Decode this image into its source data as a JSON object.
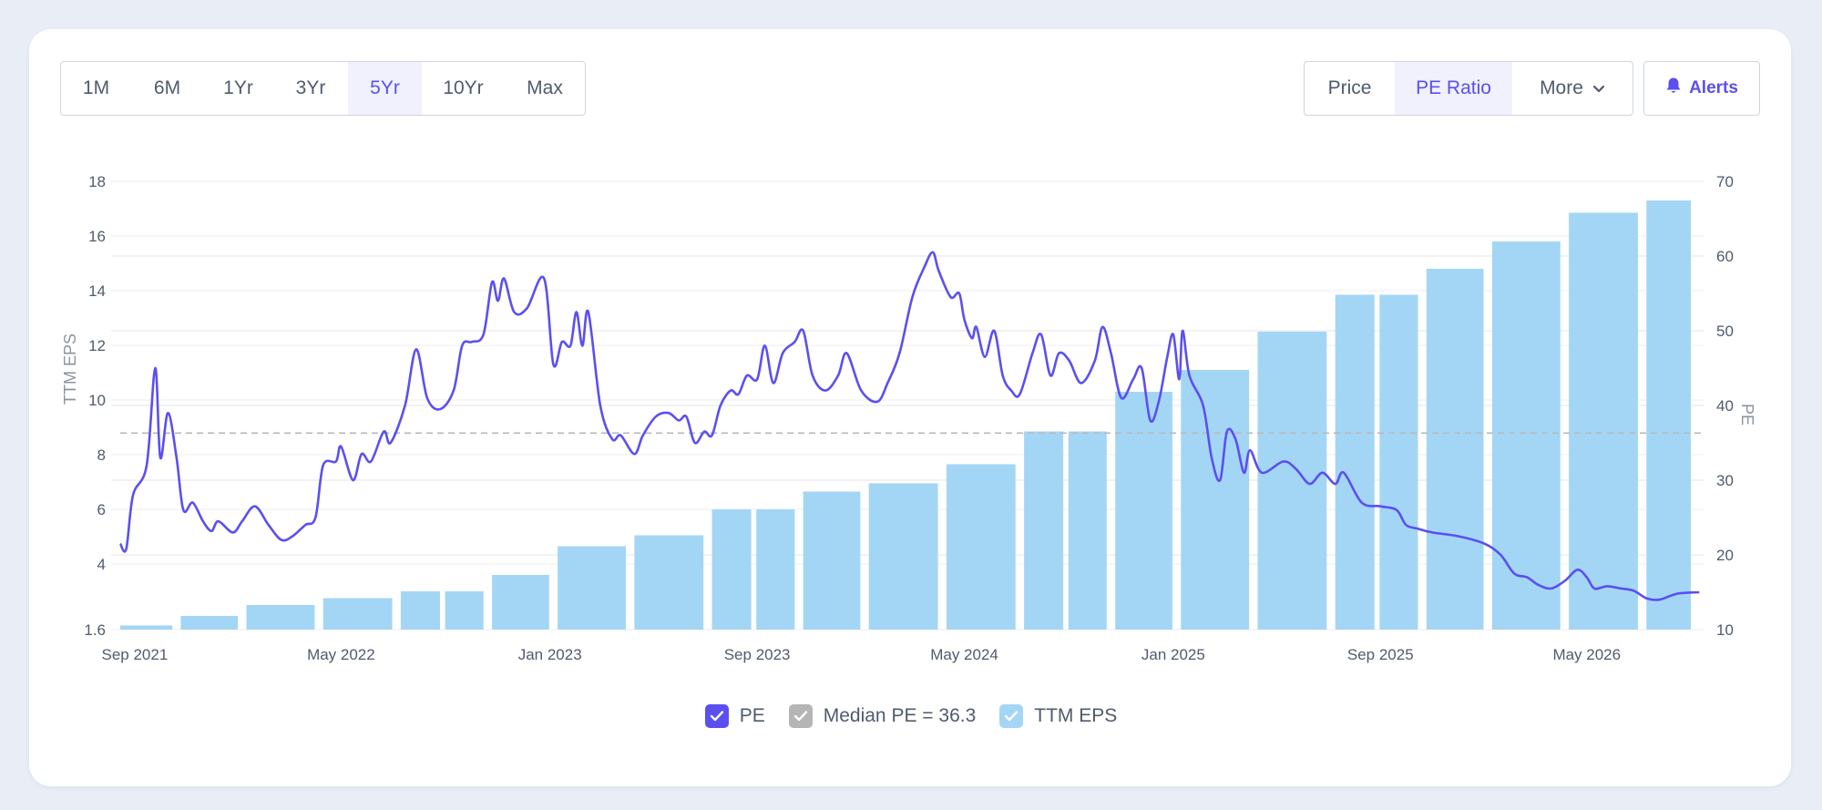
{
  "range_buttons": [
    "1M",
    "6M",
    "1Yr",
    "3Yr",
    "5Yr",
    "10Yr",
    "Max"
  ],
  "active_range": "5Yr",
  "view_buttons": [
    "Price",
    "PE Ratio",
    "More"
  ],
  "active_view": "PE Ratio",
  "alerts_label": "Alerts",
  "colors": {
    "pe_line": "#5b4ff0",
    "eps_bar": "#a3d6f5",
    "median_line": "#b8b8b8",
    "accent": "#5b4ff0"
  },
  "icons": {
    "alerts": "bell-icon",
    "more": "chevron-down-icon",
    "legend_check": "check-icon"
  },
  "legend": [
    {
      "label": "PE",
      "color": "#5b4ff0"
    },
    {
      "label": "Median PE = 36.3",
      "color": "#b5b5b5"
    },
    {
      "label": "TTM EPS",
      "color": "#a3d6f5"
    }
  ],
  "chart_data": {
    "type": "bar",
    "x_tick_labels": [
      "Sep 2021",
      "May 2022",
      "Jan 2023",
      "Sep 2023",
      "May 2024",
      "Jan 2025",
      "Sep 2025",
      "May 2026"
    ],
    "x_tick_dates": [
      "2021-09-01",
      "2022-05-01",
      "2023-01-01",
      "2023-09-01",
      "2024-05-01",
      "2025-01-01",
      "2025-09-01",
      "2026-05-01"
    ],
    "xlim": [
      "2021-08-15",
      "2026-09-15"
    ],
    "left_axis": {
      "label": "TTM EPS",
      "ticks": [
        1.6,
        4,
        6,
        8,
        10,
        12,
        14,
        16,
        18
      ],
      "range": [
        1.6,
        18
      ]
    },
    "right_axis": {
      "label": "PE",
      "ticks": [
        10,
        20,
        30,
        40,
        50,
        60,
        70
      ],
      "range": [
        10,
        70
      ]
    },
    "grid": true,
    "legend_position": "bottom",
    "median_pe": 36.3,
    "series": [
      {
        "name": "TTM EPS",
        "type": "bar",
        "axis": "left",
        "data": [
          {
            "start": "2021-08-15",
            "end": "2021-10-15",
            "value": 1.75
          },
          {
            "start": "2021-10-25",
            "end": "2021-12-31",
            "value": 2.1
          },
          {
            "start": "2022-01-10",
            "end": "2022-03-31",
            "value": 2.5
          },
          {
            "start": "2022-04-10",
            "end": "2022-06-30",
            "value": 2.75
          },
          {
            "start": "2022-07-10",
            "end": "2022-08-25",
            "value": 3.0
          },
          {
            "start": "2022-08-31",
            "end": "2022-10-15",
            "value": 3.0
          },
          {
            "start": "2022-10-25",
            "end": "2022-12-31",
            "value": 3.6
          },
          {
            "start": "2023-01-10",
            "end": "2023-03-31",
            "value": 4.65
          },
          {
            "start": "2023-04-10",
            "end": "2023-06-30",
            "value": 5.05
          },
          {
            "start": "2023-07-10",
            "end": "2023-08-25",
            "value": 6.0
          },
          {
            "start": "2023-08-31",
            "end": "2023-10-15",
            "value": 6.0
          },
          {
            "start": "2023-10-25",
            "end": "2023-12-31",
            "value": 6.65
          },
          {
            "start": "2024-01-10",
            "end": "2024-03-31",
            "value": 6.95
          },
          {
            "start": "2024-04-10",
            "end": "2024-06-30",
            "value": 7.65
          },
          {
            "start": "2024-07-10",
            "end": "2024-08-25",
            "value": 8.85
          },
          {
            "start": "2024-08-31",
            "end": "2024-10-15",
            "value": 8.85
          },
          {
            "start": "2024-10-25",
            "end": "2024-12-31",
            "value": 10.3
          },
          {
            "start": "2025-01-10",
            "end": "2025-03-31",
            "value": 11.1
          },
          {
            "start": "2025-04-10",
            "end": "2025-06-30",
            "value": 12.5
          },
          {
            "start": "2025-07-10",
            "end": "2025-08-25",
            "value": 13.85
          },
          {
            "start": "2025-08-31",
            "end": "2025-10-15",
            "value": 13.85
          },
          {
            "start": "2025-10-25",
            "end": "2025-12-31",
            "value": 14.8
          },
          {
            "start": "2026-01-10",
            "end": "2026-03-31",
            "value": 15.8
          },
          {
            "start": "2026-04-10",
            "end": "2026-06-30",
            "value": 16.85
          },
          {
            "start": "2026-07-10",
            "end": "2026-08-31",
            "value": 17.3
          }
        ]
      },
      {
        "name": "PE",
        "type": "line",
        "axis": "right",
        "data": [
          [
            "2021-08-15",
            21.5
          ],
          [
            "2021-08-22",
            20.8
          ],
          [
            "2021-08-30",
            28.0
          ],
          [
            "2021-09-15",
            32.0
          ],
          [
            "2021-09-25",
            45.0
          ],
          [
            "2021-10-01",
            33.0
          ],
          [
            "2021-10-10",
            39.0
          ],
          [
            "2021-10-20",
            33.0
          ],
          [
            "2021-10-28",
            26.0
          ],
          [
            "2021-11-08",
            27.0
          ],
          [
            "2021-11-20",
            24.5
          ],
          [
            "2021-11-30",
            23.2
          ],
          [
            "2021-12-08",
            24.5
          ],
          [
            "2021-12-25",
            23.0
          ],
          [
            "2022-01-05",
            24.5
          ],
          [
            "2022-01-20",
            26.5
          ],
          [
            "2022-02-05",
            24.0
          ],
          [
            "2022-02-20",
            22.0
          ],
          [
            "2022-03-05",
            22.5
          ],
          [
            "2022-03-20",
            24.0
          ],
          [
            "2022-04-01",
            25.0
          ],
          [
            "2022-04-10",
            32.0
          ],
          [
            "2022-04-25",
            32.5
          ],
          [
            "2022-05-01",
            34.5
          ],
          [
            "2022-05-15",
            30.0
          ],
          [
            "2022-05-25",
            33.5
          ],
          [
            "2022-06-05",
            32.5
          ],
          [
            "2022-06-20",
            36.5
          ],
          [
            "2022-06-28",
            35.0
          ],
          [
            "2022-07-15",
            40.0
          ],
          [
            "2022-07-28",
            47.5
          ],
          [
            "2022-08-10",
            41.0
          ],
          [
            "2022-08-25",
            39.5
          ],
          [
            "2022-09-10",
            42.0
          ],
          [
            "2022-09-20",
            48.0
          ],
          [
            "2022-10-01",
            48.5
          ],
          [
            "2022-10-15",
            49.5
          ],
          [
            "2022-10-25",
            56.5
          ],
          [
            "2022-11-01",
            54.0
          ],
          [
            "2022-11-08",
            57.0
          ],
          [
            "2022-11-20",
            52.5
          ],
          [
            "2022-12-05",
            53.0
          ],
          [
            "2022-12-25",
            57.0
          ],
          [
            "2023-01-05",
            45.5
          ],
          [
            "2023-01-15",
            48.5
          ],
          [
            "2023-01-25",
            48.0
          ],
          [
            "2023-02-01",
            52.5
          ],
          [
            "2023-02-08",
            48.0
          ],
          [
            "2023-02-15",
            52.5
          ],
          [
            "2023-03-01",
            40.0
          ],
          [
            "2023-03-15",
            35.5
          ],
          [
            "2023-03-25",
            36.0
          ],
          [
            "2023-04-10",
            33.5
          ],
          [
            "2023-04-20",
            36.0
          ],
          [
            "2023-05-05",
            38.5
          ],
          [
            "2023-05-20",
            39.0
          ],
          [
            "2023-06-01",
            38.0
          ],
          [
            "2023-06-10",
            38.5
          ],
          [
            "2023-06-20",
            35.0
          ],
          [
            "2023-07-01",
            36.5
          ],
          [
            "2023-07-10",
            36.0
          ],
          [
            "2023-07-20",
            40.0
          ],
          [
            "2023-08-01",
            42.0
          ],
          [
            "2023-08-10",
            41.5
          ],
          [
            "2023-08-20",
            44.0
          ],
          [
            "2023-09-01",
            43.5
          ],
          [
            "2023-09-10",
            48.0
          ],
          [
            "2023-09-20",
            43.0
          ],
          [
            "2023-10-01",
            47.0
          ],
          [
            "2023-10-15",
            48.5
          ],
          [
            "2023-10-25",
            50.0
          ],
          [
            "2023-11-05",
            44.0
          ],
          [
            "2023-11-20",
            42.0
          ],
          [
            "2023-12-05",
            44.0
          ],
          [
            "2023-12-15",
            47.0
          ],
          [
            "2024-01-01",
            42.0
          ],
          [
            "2024-01-20",
            40.5
          ],
          [
            "2024-02-01",
            43.0
          ],
          [
            "2024-02-15",
            47.0
          ],
          [
            "2024-03-01",
            54.5
          ],
          [
            "2024-03-15",
            58.5
          ],
          [
            "2024-03-25",
            60.5
          ],
          [
            "2024-04-01",
            58.0
          ],
          [
            "2024-04-15",
            54.5
          ],
          [
            "2024-04-25",
            55.0
          ],
          [
            "2024-05-01",
            51.5
          ],
          [
            "2024-05-10",
            49.0
          ],
          [
            "2024-05-15",
            50.5
          ],
          [
            "2024-05-25",
            46.5
          ],
          [
            "2024-06-05",
            50.0
          ],
          [
            "2024-06-15",
            44.0
          ],
          [
            "2024-06-25",
            42.0
          ],
          [
            "2024-07-05",
            41.5
          ],
          [
            "2024-07-20",
            47.0
          ],
          [
            "2024-07-30",
            49.5
          ],
          [
            "2024-08-10",
            44.0
          ],
          [
            "2024-08-20",
            47.0
          ],
          [
            "2024-09-01",
            46.0
          ],
          [
            "2024-09-15",
            43.0
          ],
          [
            "2024-10-01",
            46.0
          ],
          [
            "2024-10-10",
            50.5
          ],
          [
            "2024-10-20",
            47.0
          ],
          [
            "2024-11-01",
            41.0
          ],
          [
            "2024-11-15",
            43.5
          ],
          [
            "2024-11-25",
            45.0
          ],
          [
            "2024-12-05",
            38.0
          ],
          [
            "2024-12-15",
            40.5
          ],
          [
            "2024-12-25",
            46.5
          ],
          [
            "2025-01-01",
            49.5
          ],
          [
            "2025-01-08",
            43.5
          ],
          [
            "2025-01-12",
            50.0
          ],
          [
            "2025-01-20",
            44.0
          ],
          [
            "2025-02-05",
            40.0
          ],
          [
            "2025-02-15",
            33.0
          ],
          [
            "2025-02-25",
            30.0
          ],
          [
            "2025-03-05",
            36.5
          ],
          [
            "2025-03-15",
            35.5
          ],
          [
            "2025-03-25",
            31.0
          ],
          [
            "2025-04-01",
            34.0
          ],
          [
            "2025-04-15",
            31.0
          ],
          [
            "2025-05-10",
            32.5
          ],
          [
            "2025-05-25",
            31.5
          ],
          [
            "2025-06-10",
            29.5
          ],
          [
            "2025-06-25",
            31.0
          ],
          [
            "2025-07-10",
            29.5
          ],
          [
            "2025-07-20",
            31.0
          ],
          [
            "2025-08-10",
            27.0
          ],
          [
            "2025-09-01",
            26.5
          ],
          [
            "2025-09-20",
            26.0
          ],
          [
            "2025-10-01",
            24.0
          ],
          [
            "2025-10-15",
            23.5
          ],
          [
            "2025-11-01",
            23.0
          ],
          [
            "2025-12-01",
            22.5
          ],
          [
            "2026-01-01",
            21.5
          ],
          [
            "2026-01-20",
            20.0
          ],
          [
            "2026-02-05",
            17.5
          ],
          [
            "2026-02-20",
            17.0
          ],
          [
            "2026-03-05",
            16.0
          ],
          [
            "2026-03-20",
            15.5
          ],
          [
            "2026-04-05",
            16.5
          ],
          [
            "2026-04-20",
            18.0
          ],
          [
            "2026-05-01",
            17.0
          ],
          [
            "2026-05-10",
            15.5
          ],
          [
            "2026-05-25",
            15.8
          ],
          [
            "2026-06-10",
            15.5
          ],
          [
            "2026-06-25",
            15.2
          ],
          [
            "2026-07-10",
            14.2
          ],
          [
            "2026-07-25",
            14.0
          ],
          [
            "2026-08-15",
            14.8
          ],
          [
            "2026-09-10",
            15.0
          ]
        ]
      }
    ]
  }
}
